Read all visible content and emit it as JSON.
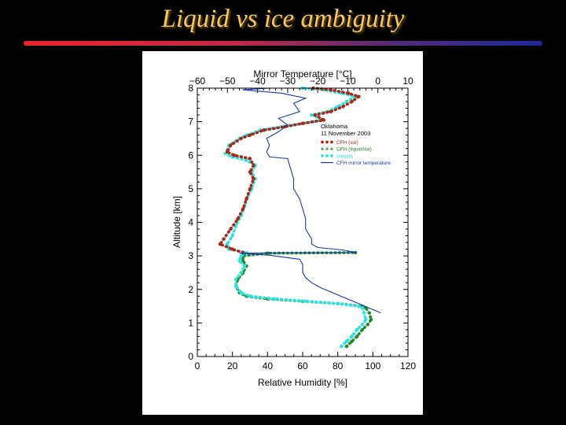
{
  "slide": {
    "title": "Liquid vs ice ambiguity"
  },
  "chart_data": {
    "type": "line",
    "top_axis": {
      "label": "Mirror Temperature [°C]",
      "range": [
        -60,
        10
      ],
      "ticks": [
        "−60",
        "−50",
        "−40",
        "−30",
        "−20",
        "−10",
        "0",
        "10"
      ]
    },
    "xlabel": "Relative Humidity [%]",
    "xlim": [
      0,
      120
    ],
    "x_ticks": [
      "0",
      "20",
      "40",
      "60",
      "80",
      "100",
      "120"
    ],
    "ylabel": "Altitude [km]",
    "ylim": [
      0,
      8
    ],
    "y_ticks": [
      "0",
      "1",
      "2",
      "3",
      "4",
      "5",
      "6",
      "7",
      "8"
    ],
    "legend": {
      "title": [
        "Oklahoma",
        "11 November 2003"
      ],
      "placement": "top-right",
      "entries": [
        {
          "label": "CFH (ice)",
          "color": "#a52a1a",
          "marker": "dots"
        },
        {
          "label": "CFH (liquid/ice)",
          "color": "#1f8c2a",
          "marker": "plus"
        },
        {
          "label": "Vaisala",
          "color": "#2ee0e0",
          "marker": "dots"
        },
        {
          "label": "CFH mirror temperature",
          "color": "#1a3aa8",
          "marker": "line"
        }
      ]
    },
    "series": [
      {
        "name": "CFH (liquid/ice)",
        "color": "#1f8c2a",
        "axis": "rh",
        "points": [
          [
            85,
            0.3
          ],
          [
            88,
            0.45
          ],
          [
            91,
            0.6
          ],
          [
            94,
            0.8
          ],
          [
            97,
            0.95
          ],
          [
            99,
            1.1
          ],
          [
            98,
            1.3
          ],
          [
            96,
            1.45
          ],
          [
            94,
            1.5
          ],
          [
            80,
            1.58
          ],
          [
            60,
            1.65
          ],
          [
            40,
            1.72
          ],
          [
            28,
            1.8
          ],
          [
            24,
            1.9
          ],
          [
            22,
            2.1
          ],
          [
            23,
            2.3
          ],
          [
            26,
            2.5
          ],
          [
            28,
            2.7
          ],
          [
            26,
            2.85
          ],
          [
            26,
            3.0
          ],
          [
            40,
            3.08
          ],
          [
            90,
            3.1
          ]
        ]
      },
      {
        "name": "Vaisala",
        "color": "#2ee0e0",
        "axis": "rh",
        "points": [
          [
            82,
            0.3
          ],
          [
            85,
            0.45
          ],
          [
            88,
            0.6
          ],
          [
            91,
            0.8
          ],
          [
            94,
            0.95
          ],
          [
            96,
            1.1
          ],
          [
            95,
            1.3
          ],
          [
            94,
            1.45
          ],
          [
            92,
            1.5
          ],
          [
            80,
            1.58
          ],
          [
            62,
            1.65
          ],
          [
            44,
            1.72
          ],
          [
            30,
            1.8
          ],
          [
            25,
            1.9
          ],
          [
            22,
            2.1
          ],
          [
            22,
            2.3
          ],
          [
            25,
            2.5
          ],
          [
            27,
            2.7
          ],
          [
            24,
            2.85
          ],
          [
            25,
            3.0
          ],
          [
            28,
            3.1
          ],
          [
            18,
            3.2
          ],
          [
            17,
            3.35
          ],
          [
            20,
            3.6
          ],
          [
            22,
            3.9
          ],
          [
            25,
            4.2
          ],
          [
            27,
            4.5
          ],
          [
            29,
            4.8
          ],
          [
            31,
            5.0
          ],
          [
            33,
            5.3
          ],
          [
            31,
            5.5
          ],
          [
            33,
            5.7
          ],
          [
            28,
            5.85
          ],
          [
            20,
            5.95
          ],
          [
            16,
            6.05
          ],
          [
            18,
            6.3
          ],
          [
            24,
            6.5
          ],
          [
            28,
            6.6
          ],
          [
            36,
            6.75
          ],
          [
            48,
            6.85
          ],
          [
            60,
            6.95
          ],
          [
            72,
            7.05
          ],
          [
            65,
            7.2
          ],
          [
            74,
            7.3
          ],
          [
            80,
            7.45
          ],
          [
            85,
            7.6
          ],
          [
            90,
            7.75
          ],
          [
            82,
            7.85
          ],
          [
            72,
            7.95
          ],
          [
            60,
            8.0
          ]
        ]
      },
      {
        "name": "CFH (ice)",
        "color": "#a52a1a",
        "axis": "rh",
        "points": [
          [
            26,
            3.1
          ],
          [
            20,
            3.2
          ],
          [
            13,
            3.35
          ],
          [
            15,
            3.5
          ],
          [
            19,
            3.8
          ],
          [
            23,
            4.1
          ],
          [
            26,
            4.4
          ],
          [
            28,
            4.7
          ],
          [
            30,
            5.0
          ],
          [
            32,
            5.3
          ],
          [
            30,
            5.5
          ],
          [
            32,
            5.7
          ],
          [
            30,
            5.9
          ],
          [
            21,
            6.0
          ],
          [
            17,
            6.1
          ],
          [
            19,
            6.3
          ],
          [
            25,
            6.5
          ],
          [
            30,
            6.6
          ],
          [
            38,
            6.75
          ],
          [
            50,
            6.85
          ],
          [
            60,
            6.95
          ],
          [
            72,
            7.05
          ],
          [
            67,
            7.2
          ],
          [
            76,
            7.3
          ],
          [
            83,
            7.45
          ],
          [
            88,
            7.6
          ],
          [
            92,
            7.75
          ],
          [
            86,
            7.85
          ],
          [
            76,
            7.95
          ],
          [
            66,
            8.0
          ]
        ]
      },
      {
        "name": "CFH mirror temperature",
        "color": "#1a3aa8",
        "axis": "temp",
        "points": [
          [
            1,
            1.3
          ],
          [
            -3,
            1.45
          ],
          [
            -7,
            1.6
          ],
          [
            -11,
            1.75
          ],
          [
            -15,
            1.9
          ],
          [
            -19,
            2.05
          ],
          [
            -22,
            2.2
          ],
          [
            -24,
            2.35
          ],
          [
            -25,
            2.5
          ],
          [
            -25,
            2.75
          ],
          [
            -26,
            2.9
          ],
          [
            -36,
            3.02
          ],
          [
            -46,
            3.08
          ],
          [
            -7,
            3.1
          ],
          [
            -12,
            3.18
          ],
          [
            -20,
            3.25
          ],
          [
            -22,
            3.35
          ],
          [
            -22,
            3.5
          ],
          [
            -24,
            3.8
          ],
          [
            -24,
            4.1
          ],
          [
            -25,
            4.4
          ],
          [
            -26,
            4.7
          ],
          [
            -28,
            5.0
          ],
          [
            -28,
            5.3
          ],
          [
            -29,
            5.6
          ],
          [
            -30,
            5.9
          ],
          [
            -36,
            5.95
          ],
          [
            -37,
            6.1
          ],
          [
            -36,
            6.3
          ],
          [
            -37,
            6.5
          ],
          [
            -33,
            6.7
          ],
          [
            -30,
            6.9
          ],
          [
            -33,
            7.1
          ],
          [
            -26,
            7.3
          ],
          [
            -28,
            7.55
          ],
          [
            -24,
            7.7
          ],
          [
            -32,
            7.85
          ],
          [
            -45,
            7.95
          ],
          [
            -36,
            8.0
          ]
        ]
      }
    ]
  }
}
